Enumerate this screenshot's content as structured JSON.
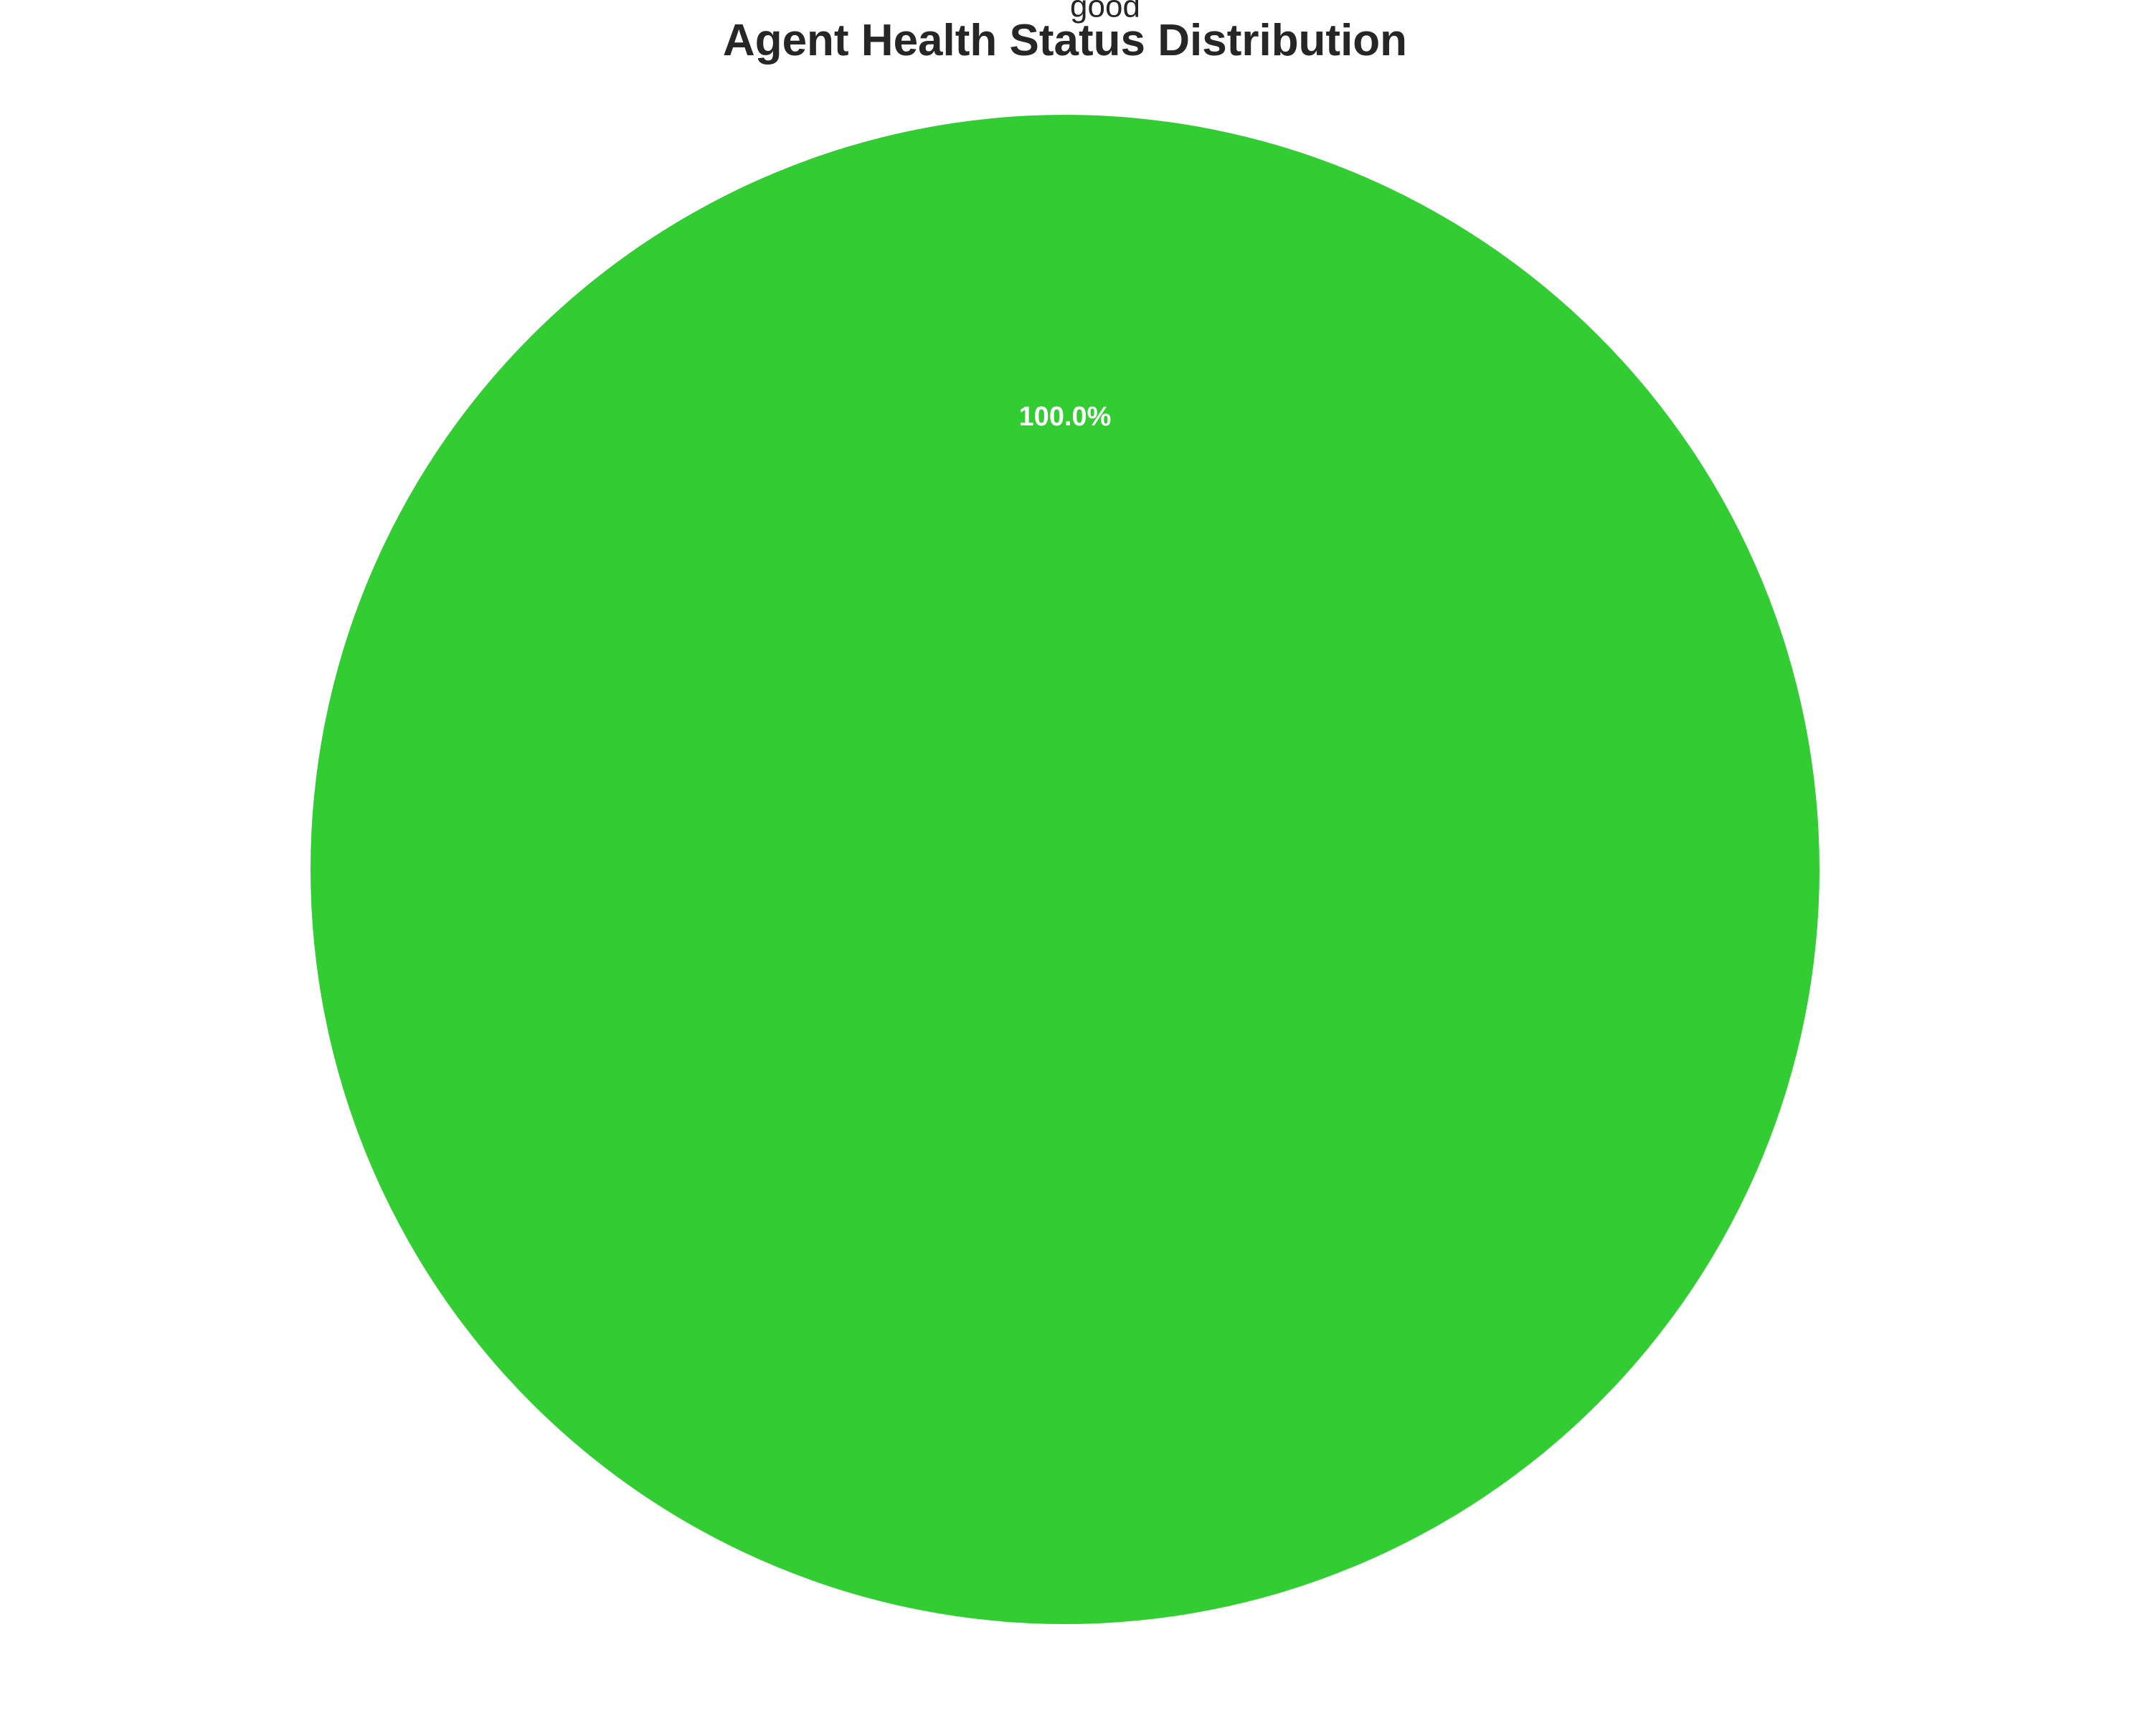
{
  "chart_data": {
    "type": "pie",
    "title": "Agent Health Status Distribution",
    "slices": [
      {
        "label": "good",
        "value": 100.0,
        "percent_label": "100.0%",
        "color": "#32CD32"
      }
    ],
    "label_color": "#262626",
    "percent_text_color": "#ffffff",
    "legend": "none"
  }
}
